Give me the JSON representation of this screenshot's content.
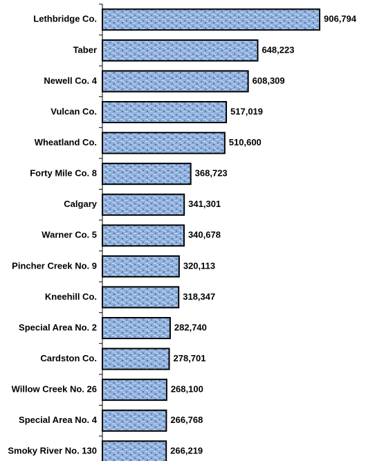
{
  "chart_data": {
    "type": "bar",
    "orientation": "horizontal",
    "categories": [
      "Lethbridge Co.",
      "Taber",
      "Newell Co. 4",
      "Vulcan Co.",
      "Wheatland Co.",
      "Forty Mile Co. 8",
      "Calgary",
      "Warner Co. 5",
      "Pincher Creek No. 9",
      "Kneehill Co.",
      "Special Area No. 2",
      "Cardston Co.",
      "Willow Creek No. 26",
      "Special Area No. 4",
      "Smoky River No. 130"
    ],
    "values": [
      906794,
      648223,
      608309,
      517019,
      510600,
      368723,
      341301,
      340678,
      320113,
      318347,
      282740,
      278701,
      268100,
      266768,
      266219
    ],
    "value_labels": [
      "906,794",
      "648,223",
      "608,309",
      "517,019",
      "510,600",
      "368,723",
      "341,301",
      "340,678",
      "320,113",
      "318,347",
      "282,740",
      "278,701",
      "268,100",
      "266,768",
      "266,219"
    ],
    "color": "#7f9fd0"
  }
}
